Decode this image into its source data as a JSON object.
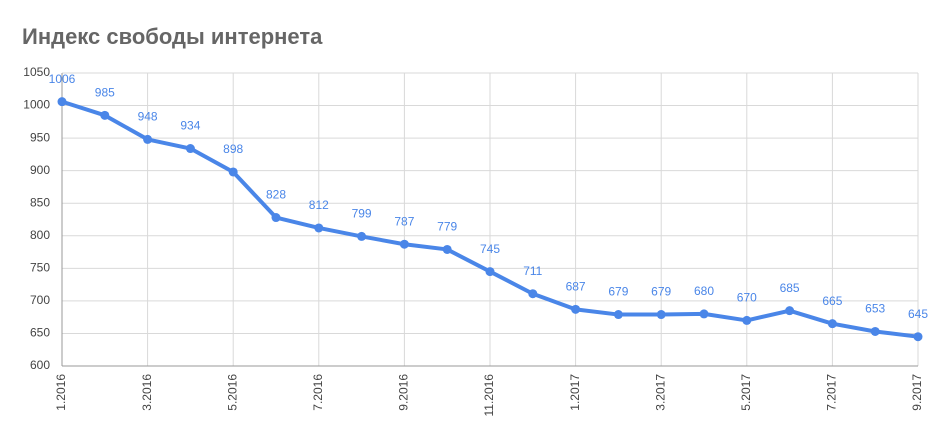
{
  "chart_data": {
    "type": "line",
    "title": "Индекс свободы интернета",
    "categories": [
      "1.2016",
      null,
      "3.2016",
      null,
      "5.2016",
      null,
      "7.2016",
      null,
      "9.2016",
      null,
      "11.2016",
      null,
      "1.2017",
      null,
      "3.2017",
      null,
      "5.2017",
      null,
      "7.2017",
      null,
      "9.2017"
    ],
    "values": [
      1006,
      985,
      948,
      934,
      898,
      828,
      812,
      799,
      787,
      779,
      745,
      711,
      687,
      679,
      679,
      680,
      670,
      685,
      665,
      653,
      645
    ],
    "color": "#4a86e8",
    "ylim": [
      600,
      1050
    ],
    "yticks": [
      600,
      650,
      700,
      750,
      800,
      850,
      900,
      950,
      1000,
      1050
    ],
    "grid": true
  }
}
